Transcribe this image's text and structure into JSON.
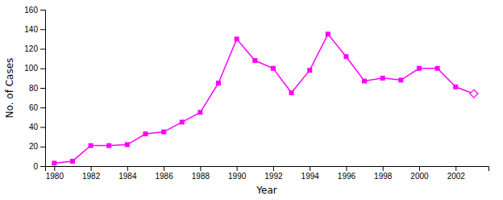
{
  "chart_data": {
    "type": "line",
    "x": [
      1980,
      1981,
      1982,
      1983,
      1984,
      1985,
      1986,
      1987,
      1988,
      1989,
      1990,
      1991,
      1992,
      1993,
      1994,
      1995,
      1996,
      1997,
      1998,
      1999,
      2000,
      2001,
      2002,
      2003
    ],
    "values": [
      3,
      5,
      21,
      21,
      22,
      33,
      35,
      45,
      55,
      85,
      130,
      108,
      100,
      75,
      98,
      135,
      112,
      87,
      90,
      88,
      100,
      100,
      81,
      74
    ],
    "color": "#FF00FF",
    "marker": "square",
    "xlabel": "Year",
    "ylabel": "No. of Cases",
    "xlim": [
      1979.5,
      2003.8
    ],
    "ylim": [
      0,
      160
    ],
    "xticks": [
      1980,
      1982,
      1984,
      1986,
      1988,
      1990,
      1992,
      1994,
      1996,
      1998,
      2000,
      2002
    ],
    "yticks": [
      0,
      20,
      40,
      60,
      80,
      100,
      120,
      140,
      160
    ],
    "grid": false
  }
}
